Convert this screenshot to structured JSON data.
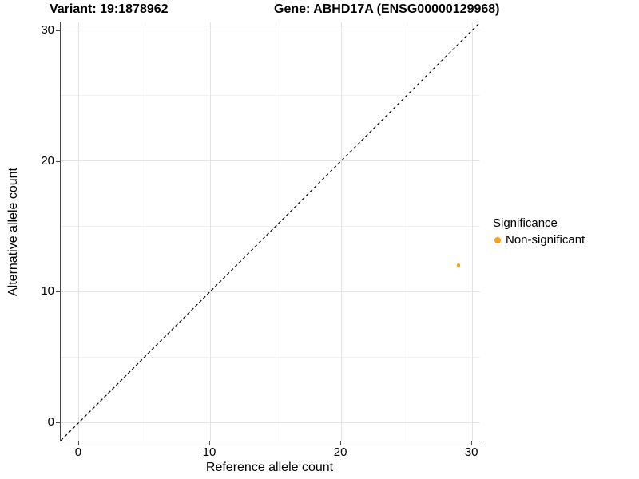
{
  "titles": {
    "variant": "Variant: 19:1878962",
    "gene": "Gene: ABHD17A (ENSG00000129968)"
  },
  "chart_data": {
    "type": "scatter",
    "title": "Variant: 19:1878962   Gene: ABHD17A (ENSG00000129968)",
    "xlabel": "Reference allele count",
    "ylabel": "Alternative allele count",
    "xlim": [
      -1.4,
      30.6
    ],
    "ylim": [
      -1.4,
      30.6
    ],
    "x_ticks": [
      0,
      10,
      20,
      30
    ],
    "y_ticks": [
      0,
      10,
      20,
      30
    ],
    "x_minor_ticks": [
      5,
      15,
      25
    ],
    "y_minor_ticks": [
      5,
      15,
      25
    ],
    "grid": true,
    "points": [
      {
        "x": 29,
        "y": 12,
        "series": "Non-significant",
        "color": "#F9A01E"
      }
    ],
    "reference_line": {
      "type": "identity y=x",
      "style": "dashed",
      "color": "#000000"
    },
    "legend": {
      "title": "Significance",
      "position": "right",
      "entries": [
        {
          "label": "Non-significant",
          "color": "#F9A01E"
        }
      ]
    }
  }
}
